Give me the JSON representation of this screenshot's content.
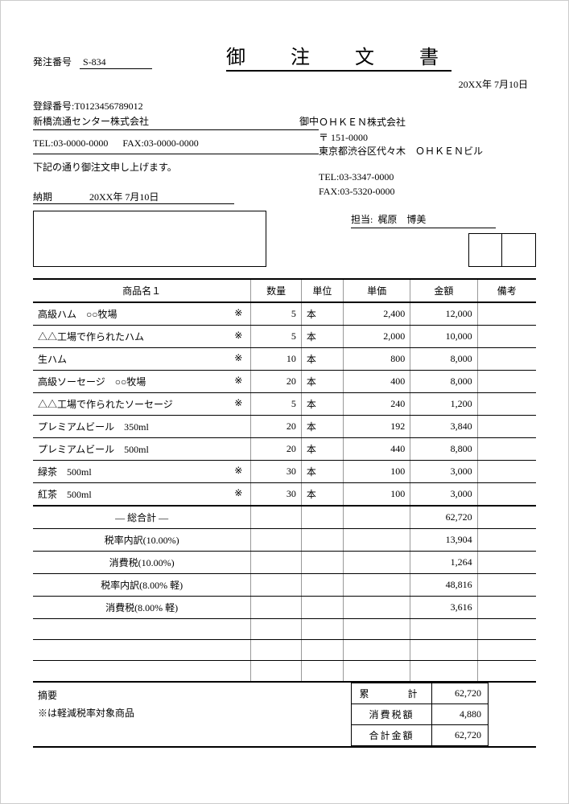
{
  "header": {
    "order_no_label": "発注番号",
    "order_no": "S-834",
    "title": "御　注　文　書",
    "date": "20XX年 7月10日"
  },
  "customer": {
    "reg_label": "登録番号:T0123456789012",
    "name": "新橋流通センター株式会社",
    "onchu": "御中",
    "tel": "TEL:03-0000-0000",
    "fax": "FAX:03-0000-0000",
    "notice": "下記の通り御注文申し上げます。",
    "nouki_label": "納期",
    "nouki": "20XX年 7月10日"
  },
  "supplier": {
    "name": "ＯＨＫＥＮ株式会社",
    "postal": "〒 151-0000",
    "address": "東京都渋谷区代々木　ＯＨＫＥＮビル",
    "tel": "TEL:03-3347-0000",
    "fax": "FAX:03-5320-0000",
    "tanto_label": "担当:",
    "tanto_name": "梶原　博美"
  },
  "table": {
    "headers": {
      "name": "商品名１",
      "qty": "数量",
      "unit": "単位",
      "price": "単価",
      "amount": "金額",
      "note": "備考"
    },
    "rows": [
      {
        "name": "高級ハム　○○牧場",
        "mark": "※",
        "qty": "5",
        "unit": "本",
        "price": "2,400",
        "amount": "12,000"
      },
      {
        "name": "△△工場で作られたハム",
        "mark": "※",
        "qty": "5",
        "unit": "本",
        "price": "2,000",
        "amount": "10,000"
      },
      {
        "name": "生ハム",
        "mark": "※",
        "qty": "10",
        "unit": "本",
        "price": "800",
        "amount": "8,000"
      },
      {
        "name": "高級ソーセージ　○○牧場",
        "mark": "※",
        "qty": "20",
        "unit": "本",
        "price": "400",
        "amount": "8,000"
      },
      {
        "name": "△△工場で作られたソーセージ",
        "mark": "※",
        "qty": "5",
        "unit": "本",
        "price": "240",
        "amount": "1,200"
      },
      {
        "name": "プレミアムビール　350ml",
        "mark": "",
        "qty": "20",
        "unit": "本",
        "price": "192",
        "amount": "3,840"
      },
      {
        "name": "プレミアムビール　500ml",
        "mark": "",
        "qty": "20",
        "unit": "本",
        "price": "440",
        "amount": "8,800"
      },
      {
        "name": "緑茶　500ml",
        "mark": "※",
        "qty": "30",
        "unit": "本",
        "price": "100",
        "amount": "3,000"
      },
      {
        "name": "紅茶　500ml",
        "mark": "※",
        "qty": "30",
        "unit": "本",
        "price": "100",
        "amount": "3,000"
      }
    ],
    "summary": [
      {
        "label": "― 総合計 ―",
        "amount": "62,720"
      },
      {
        "label": "税率内訳(10.00%)",
        "amount": "13,904"
      },
      {
        "label": "消費税(10.00%)",
        "amount": "1,264"
      },
      {
        "label": "税率内訳(8.00% 軽)",
        "amount": "48,816"
      },
      {
        "label": "消費税(8.00% 軽)",
        "amount": "3,616"
      }
    ]
  },
  "footer": {
    "tekiyo_label": "摘要",
    "tekiyo_note": "※は軽減税率対象商品",
    "totals": [
      {
        "label": "累　　計",
        "value": "62,720"
      },
      {
        "label": "消費税額",
        "value": "4,880"
      },
      {
        "label": "合計金額",
        "value": "62,720"
      }
    ]
  }
}
